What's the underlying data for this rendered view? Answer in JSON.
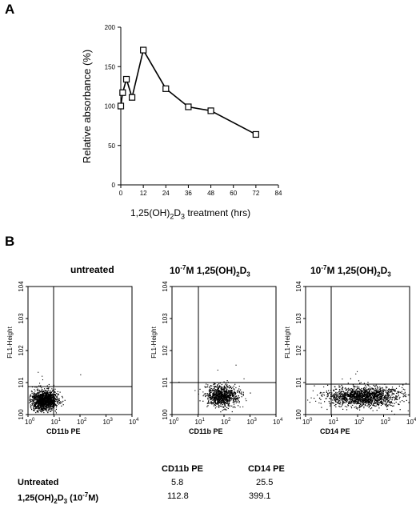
{
  "panel_a": {
    "letter": "A",
    "chart_data": {
      "type": "line",
      "x": [
        0,
        1,
        3,
        6,
        12,
        24,
        36,
        48,
        72
      ],
      "y": [
        100,
        117,
        134,
        111,
        171,
        122,
        99,
        94,
        64
      ],
      "xlabel": "1,25(OH)2D3 treatment (hrs)",
      "ylabel": "Relative absorbance (%)",
      "xlim": [
        0,
        84
      ],
      "ylim": [
        0,
        200
      ],
      "xticks": [
        0,
        12,
        24,
        36,
        48,
        60,
        72,
        84
      ],
      "yticks": [
        0,
        50,
        100,
        150,
        200
      ],
      "marker": "open-square",
      "grid": false
    }
  },
  "panel_b": {
    "letter": "B",
    "plots": [
      {
        "title_prefix": "",
        "title_exp": "",
        "title_main": "untreated",
        "title_sub": "",
        "title_tail": "",
        "ylabel": "FL1-Height",
        "xlabel": "CD11b PE"
      },
      {
        "title_prefix": "10",
        "title_exp": "-7",
        "title_main": "M 1,25(OH)",
        "title_sub": "2",
        "title_tail": "D3",
        "ylabel": "FL1-Height",
        "xlabel": "CD11b PE"
      },
      {
        "title_prefix": "10",
        "title_exp": "-7",
        "title_main": "M 1,25(OH)",
        "title_sub": "2",
        "title_tail": "D3",
        "ylabel": "FL1-Height",
        "xlabel": "CD14 PE"
      }
    ],
    "axis_ticks": [
      "10",
      "10",
      "10",
      "10",
      "10"
    ],
    "axis_exps": [
      "0",
      "1",
      "2",
      "3",
      "4"
    ]
  },
  "table": {
    "col1_header": "CD11b PE",
    "col2_header": "CD14 PE",
    "rows": [
      {
        "label": "Untreated",
        "label_sub": "",
        "label_tail": "",
        "v1": "5.8",
        "v2": "25.5"
      },
      {
        "label": "1,25(OH)",
        "label_sub": "2",
        "label_tail": "D3 (10-7M)",
        "v1": "112.8",
        "v2": "399.1"
      }
    ]
  }
}
